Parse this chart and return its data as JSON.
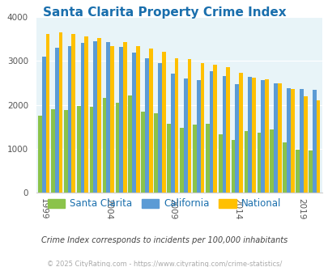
{
  "title": "Santa Clarita Property Crime Index",
  "title_color": "#1a6fad",
  "years": [
    1999,
    2000,
    2001,
    2002,
    2003,
    2004,
    2005,
    2006,
    2007,
    2008,
    2009,
    2010,
    2011,
    2012,
    2013,
    2014,
    2015,
    2016,
    2017,
    2018,
    2019,
    2020
  ],
  "santa_clarita": [
    1750,
    1900,
    1880,
    1980,
    1960,
    2150,
    2050,
    2220,
    1850,
    1800,
    1570,
    1470,
    1550,
    1560,
    1330,
    1190,
    1400,
    1370,
    1430,
    1140,
    980,
    960
  ],
  "california": [
    3110,
    3300,
    3340,
    3420,
    3450,
    3430,
    3330,
    3190,
    3060,
    2960,
    2720,
    2600,
    2570,
    2760,
    2660,
    2470,
    2630,
    2560,
    2500,
    2380,
    2360,
    2350
  ],
  "national": [
    3620,
    3660,
    3620,
    3570,
    3530,
    3340,
    3430,
    3350,
    3290,
    3220,
    3060,
    3050,
    2960,
    2920,
    2870,
    2730,
    2620,
    2590,
    2490,
    2370,
    2190,
    2110
  ],
  "bar_color_sc": "#8bc34a",
  "bar_color_ca": "#5b9bd5",
  "bar_color_na": "#ffc000",
  "bg_color": "#e8f4f8",
  "ylim": [
    0,
    4000
  ],
  "ylabel_ticks": [
    0,
    1000,
    2000,
    3000,
    4000
  ],
  "xtick_labels": [
    "1999",
    "2004",
    "2009",
    "2014",
    "2019"
  ],
  "xtick_positions": [
    0,
    5,
    10,
    15,
    20
  ],
  "subtitle": "Crime Index corresponds to incidents per 100,000 inhabitants",
  "footer": "© 2025 CityRating.com - https://www.cityrating.com/crime-statistics/",
  "legend_labels": [
    "Santa Clarita",
    "California",
    "National"
  ],
  "title_fontsize": 11,
  "subtitle_color": "#444444",
  "footer_color": "#aaaaaa"
}
